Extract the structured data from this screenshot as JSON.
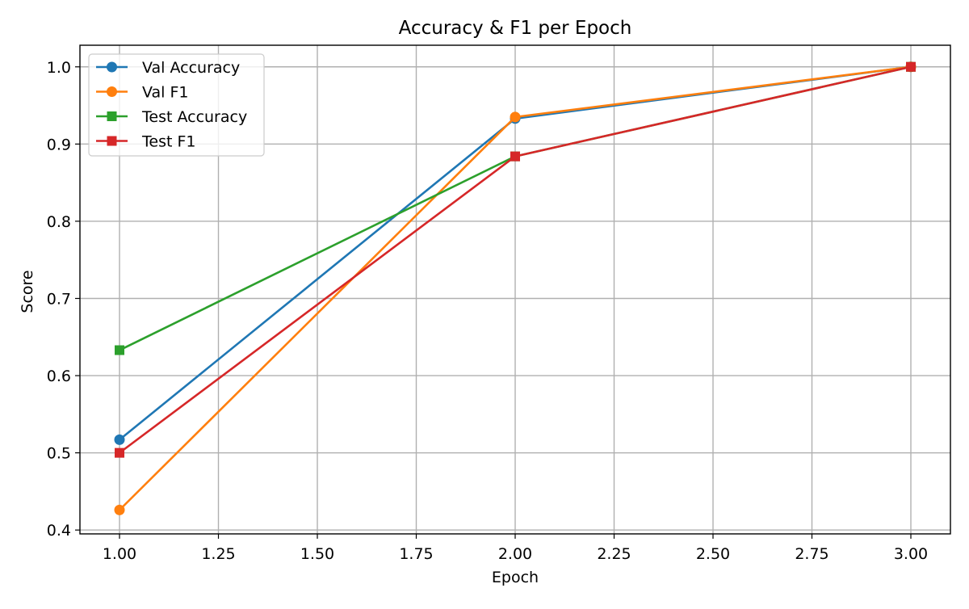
{
  "chart_data": {
    "type": "line",
    "title": "Accuracy & F1 per Epoch",
    "xlabel": "Epoch",
    "ylabel": "Score",
    "x": [
      1,
      2,
      3
    ],
    "xlim": [
      0.9,
      3.1
    ],
    "ylim": [
      0.395,
      1.028
    ],
    "xticks": [
      "1.00",
      "1.25",
      "1.50",
      "1.75",
      "2.00",
      "2.25",
      "2.50",
      "2.75",
      "3.00"
    ],
    "xtick_values": [
      1.0,
      1.25,
      1.5,
      1.75,
      2.0,
      2.25,
      2.5,
      2.75,
      3.0
    ],
    "yticks": [
      "0.4",
      "0.5",
      "0.6",
      "0.7",
      "0.8",
      "0.9",
      "1.0"
    ],
    "ytick_values": [
      0.4,
      0.5,
      0.6,
      0.7,
      0.8,
      0.9,
      1.0
    ],
    "grid": true,
    "legend_position": "upper-left",
    "series": [
      {
        "name": "Val Accuracy",
        "values": [
          0.517,
          0.933,
          1.0
        ],
        "color": "#1f77b4",
        "marker": "circle"
      },
      {
        "name": "Val F1",
        "values": [
          0.426,
          0.935,
          1.0
        ],
        "color": "#ff7f0e",
        "marker": "circle"
      },
      {
        "name": "Test Accuracy",
        "values": [
          0.633,
          0.884,
          1.0
        ],
        "color": "#2ca02c",
        "marker": "square"
      },
      {
        "name": "Test F1",
        "values": [
          0.5,
          0.884,
          1.0
        ],
        "color": "#d62728",
        "marker": "square"
      }
    ]
  }
}
